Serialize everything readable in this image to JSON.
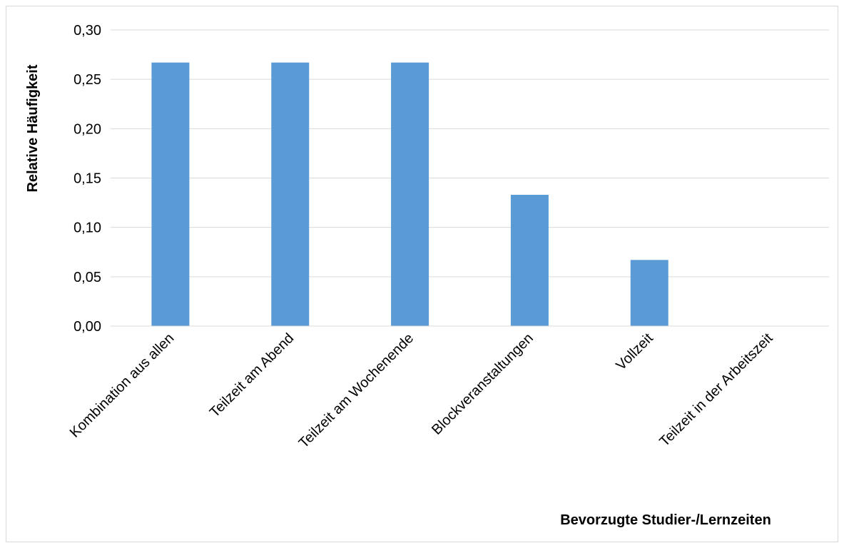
{
  "chart_data": {
    "type": "bar",
    "title": "",
    "xlabel": "Bevorzugte Studier-/Lernzeiten",
    "ylabel": "Relative Häufigkeit",
    "categories": [
      "Kombination aus allen",
      "Teilzeit am Abend",
      "Teilzeit am Wochenende",
      "Blockveranstaltungen",
      "Vollzeit",
      "Teilzeit in der Arbeitszeit"
    ],
    "values": [
      0.267,
      0.267,
      0.267,
      0.133,
      0.067,
      0.0
    ],
    "ylim": [
      0,
      0.3
    ],
    "yticks": [
      "0,00",
      "0,05",
      "0,10",
      "0,15",
      "0,20",
      "0,25",
      "0,30"
    ],
    "grid": true,
    "legend": "none",
    "bar_color": "#5b9bd5",
    "grid_color": "#d9d9d9"
  }
}
